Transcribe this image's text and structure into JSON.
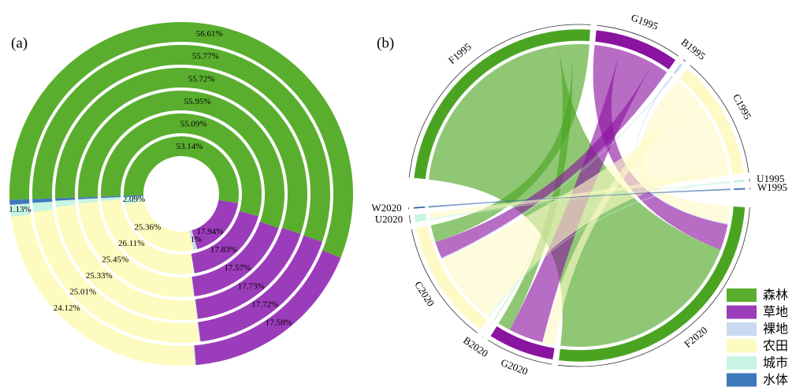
{
  "chart_data": [
    {
      "type": "multi-ring-donut",
      "label": "(a)",
      "series": [
        {
          "name": "森林",
          "color": "#5aae2e",
          "values": [
            53.14,
            55.09,
            55.95,
            55.72,
            55.77,
            56.61
          ],
          "value_labels": [
            "53.14%",
            "55.09%",
            "55.95%",
            "55.72%",
            "55.77%",
            "56.61%"
          ]
        },
        {
          "name": "草地",
          "color": "#9b3cba",
          "values": [
            17.94,
            17.83,
            17.57,
            17.73,
            17.72,
            17.58
          ],
          "value_labels": [
            "17.94%",
            "17.83%",
            "17.57%",
            "17.73%",
            "17.72%",
            "17.58%"
          ]
        },
        {
          "name": "裸地",
          "color": "#c9daf0",
          "values": [
            1.1,
            0.1,
            0.1,
            0.1,
            0.1,
            0.1
          ],
          "value_labels": [
            "1.1%",
            null,
            null,
            null,
            null,
            null
          ]
        },
        {
          "name": "农田",
          "color": "#fdfbbf",
          "values": [
            25.36,
            26.11,
            25.45,
            25.33,
            25.01,
            24.12
          ],
          "value_labels": [
            "25.36%",
            "26.11%",
            "25.45%",
            "25.33%",
            "25.01%",
            "24.12%"
          ]
        },
        {
          "name": "城市",
          "color": "#c8f5e3",
          "values": [
            2.09,
            0.6,
            0.65,
            0.8,
            1.0,
            1.13
          ],
          "value_labels": [
            "2.09%",
            null,
            null,
            null,
            null,
            "1.13%"
          ]
        },
        {
          "name": "水体",
          "color": "#3f78bb",
          "values": [
            0.37,
            0.27,
            0.28,
            0.32,
            0.4,
            0.46
          ],
          "value_labels": [
            null,
            null,
            null,
            null,
            null,
            null
          ]
        }
      ]
    },
    {
      "type": "chord",
      "label": "(b)",
      "nodes": [
        {
          "label": "F1995",
          "color": "#4aa421"
        },
        {
          "label": "G1995",
          "color": "#8a149f"
        },
        {
          "label": "B1995",
          "color": "#c6d8f0"
        },
        {
          "label": "C1995",
          "color": "#fdfac6"
        },
        {
          "label": "U1995",
          "color": "#c8f5e3"
        },
        {
          "label": "W1995",
          "color": "#2c63a8"
        },
        {
          "label": "F2020",
          "color": "#4aa421"
        },
        {
          "label": "G2020",
          "color": "#8a149f"
        },
        {
          "label": "B2020",
          "color": "#c6d8f0"
        },
        {
          "label": "C2020",
          "color": "#fdfac6"
        },
        {
          "label": "U2020",
          "color": "#c8f5e3"
        },
        {
          "label": "W2020",
          "color": "#2c63a8"
        }
      ],
      "flows": [
        {
          "source": "F1995",
          "target": "F2020",
          "value": 46
        },
        {
          "source": "F1995",
          "target": "G2020",
          "value": 3
        },
        {
          "source": "F1995",
          "target": "B2020",
          "value": 0.1
        },
        {
          "source": "F1995",
          "target": "C2020",
          "value": 4
        },
        {
          "source": "G1995",
          "target": "F2020",
          "value": 6
        },
        {
          "source": "G1995",
          "target": "G2020",
          "value": 8
        },
        {
          "source": "G1995",
          "target": "C2020",
          "value": 3.9
        },
        {
          "source": "B1995",
          "target": "F2020",
          "value": 0.3
        },
        {
          "source": "B1995",
          "target": "C2020",
          "value": 0.3
        },
        {
          "source": "C1995",
          "target": "F2020",
          "value": 4
        },
        {
          "source": "C1995",
          "target": "G2020",
          "value": 3
        },
        {
          "source": "C1995",
          "target": "C2020",
          "value": 17
        },
        {
          "source": "C1995",
          "target": "U2020",
          "value": 1.36
        },
        {
          "source": "U1995",
          "target": "C2020",
          "value": 0.3
        },
        {
          "source": "U1995",
          "target": "U2020",
          "value": 0.3
        },
        {
          "source": "W1995",
          "target": "W2020",
          "value": 0.37
        }
      ]
    }
  ]
}
